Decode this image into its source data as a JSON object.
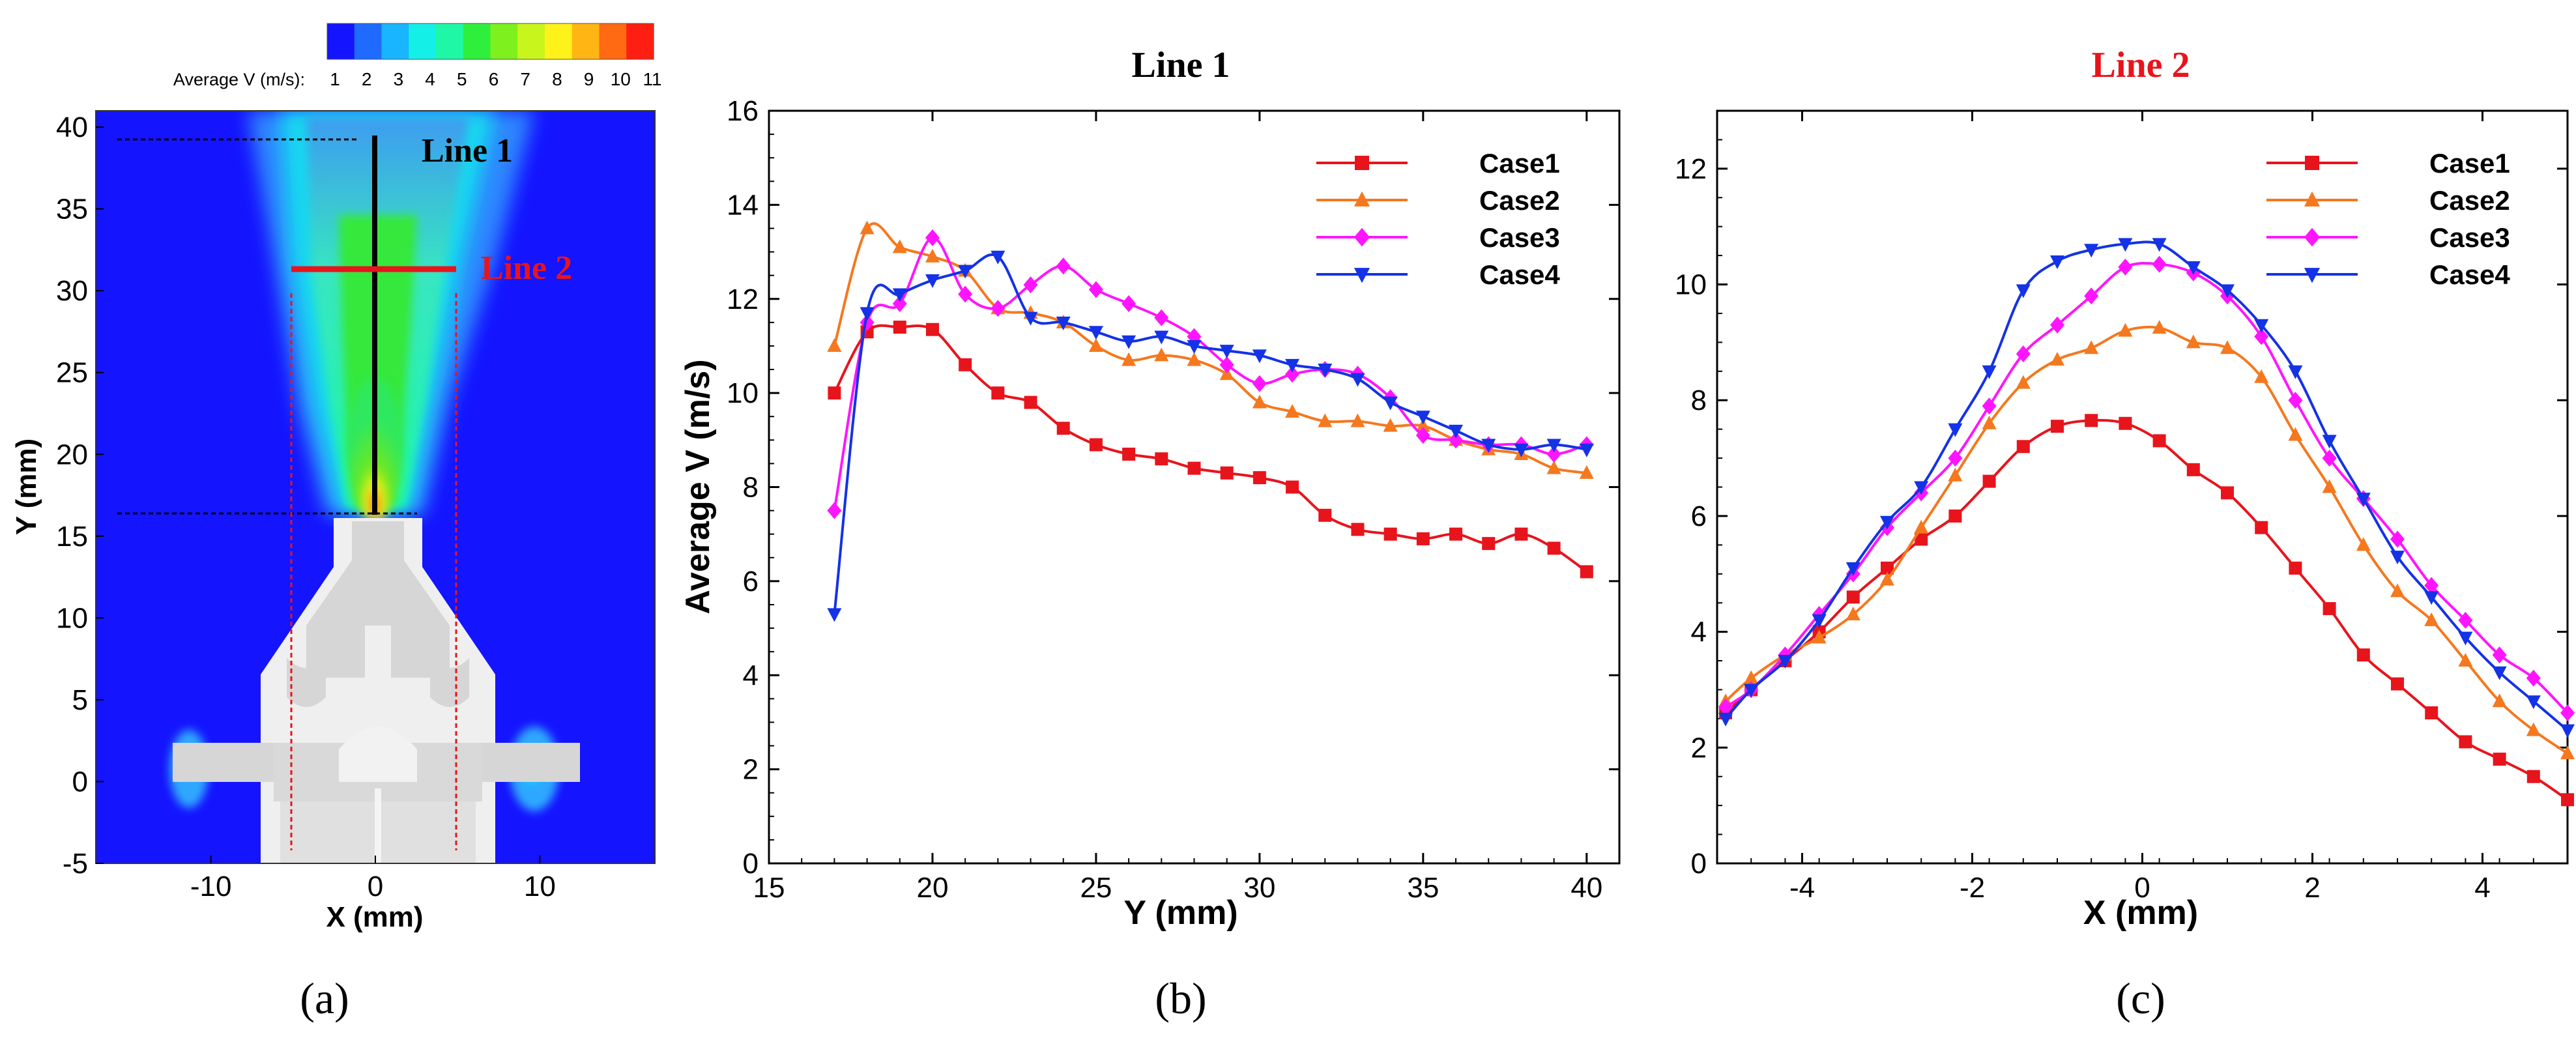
{
  "panel_a": {
    "colorbar": {
      "title": "Average V (m/s):",
      "ticks": [
        "1",
        "2",
        "3",
        "4",
        "5",
        "6",
        "7",
        "8",
        "9",
        "10",
        "11"
      ],
      "colors": [
        "#1414ff",
        "#1f6bff",
        "#19b5ff",
        "#14f0e8",
        "#1ef7a6",
        "#2ef03c",
        "#7ef01e",
        "#c8f51c",
        "#fff21a",
        "#ffb514",
        "#ff6a12",
        "#ff1e12"
      ]
    },
    "xlabel": "X (mm)",
    "ylabel": "Y (mm)",
    "xticks": [
      "-10",
      "0",
      "10"
    ],
    "yticks": [
      "-5",
      "0",
      "5",
      "10",
      "15",
      "20",
      "25",
      "30",
      "35",
      "40"
    ],
    "xlim": [
      -17,
      17
    ],
    "ylim": [
      -5,
      41
    ],
    "line1_label": "Line 1",
    "line2_label": "Line 2",
    "caption": "(a)"
  },
  "chart_data": [
    {
      "type": "line",
      "title": "Line 1",
      "title_color": "#000000",
      "xlabel": "Y (mm)",
      "ylabel": "Average V (m/s)",
      "xlim": [
        15,
        41
      ],
      "ylim": [
        0,
        16
      ],
      "xticks": [
        15,
        20,
        25,
        30,
        35,
        40
      ],
      "yticks": [
        0,
        2,
        4,
        6,
        8,
        10,
        12,
        14,
        16
      ],
      "legend": "top-right",
      "caption": "(b)",
      "series": [
        {
          "name": "Case1",
          "color": "#e8141c",
          "marker": "square",
          "x": [
            17,
            18,
            19,
            20,
            21,
            22,
            23,
            24,
            25,
            26,
            27,
            28,
            29,
            30,
            31,
            32,
            33,
            34,
            35,
            36,
            37,
            38,
            39,
            40
          ],
          "y": [
            10.0,
            11.3,
            11.4,
            11.35,
            10.6,
            10.0,
            9.8,
            9.25,
            8.9,
            8.7,
            8.6,
            8.4,
            8.3,
            8.2,
            8.0,
            7.4,
            7.1,
            7.0,
            6.9,
            7.0,
            6.8,
            7.0,
            6.7,
            6.2
          ]
        },
        {
          "name": "Case2",
          "color": "#f5781e",
          "marker": "triangle",
          "x": [
            17,
            18,
            19,
            20,
            21,
            22,
            23,
            24,
            25,
            26,
            27,
            28,
            29,
            30,
            31,
            32,
            33,
            34,
            35,
            36,
            37,
            38,
            39,
            40
          ],
          "y": [
            11.0,
            13.5,
            13.1,
            12.9,
            12.6,
            11.8,
            11.7,
            11.5,
            11.0,
            10.7,
            10.8,
            10.7,
            10.4,
            9.8,
            9.6,
            9.4,
            9.4,
            9.3,
            9.3,
            9.0,
            8.8,
            8.7,
            8.4,
            8.3
          ]
        },
        {
          "name": "Case3",
          "color": "#ff14ff",
          "marker": "diamond",
          "x": [
            17,
            18,
            19,
            20,
            21,
            22,
            23,
            24,
            25,
            26,
            27,
            28,
            29,
            30,
            31,
            32,
            33,
            34,
            35,
            36,
            37,
            38,
            39,
            40
          ],
          "y": [
            7.5,
            11.5,
            11.9,
            13.3,
            12.1,
            11.8,
            12.3,
            12.7,
            12.2,
            11.9,
            11.6,
            11.2,
            10.6,
            10.2,
            10.4,
            10.5,
            10.4,
            9.9,
            9.1,
            9.0,
            8.9,
            8.9,
            8.7,
            8.9
          ]
        },
        {
          "name": "Case4",
          "color": "#1432e6",
          "marker": "triangle-down",
          "x": [
            17,
            18,
            19,
            20,
            21,
            22,
            23,
            24,
            25,
            26,
            27,
            28,
            29,
            30,
            31,
            32,
            33,
            34,
            35,
            36,
            37,
            38,
            39,
            40
          ],
          "y": [
            5.3,
            11.7,
            12.1,
            12.4,
            12.6,
            12.9,
            11.6,
            11.5,
            11.3,
            11.1,
            11.2,
            11.0,
            10.9,
            10.8,
            10.6,
            10.5,
            10.3,
            9.8,
            9.5,
            9.2,
            8.9,
            8.8,
            8.9,
            8.8
          ]
        }
      ]
    },
    {
      "type": "line",
      "title": "Line 2",
      "title_color": "#e8141c",
      "xlabel": "X (mm)",
      "ylabel": "",
      "xlim": [
        -5,
        5
      ],
      "ylim": [
        0,
        13
      ],
      "xticks": [
        -4,
        -2,
        0,
        2,
        4
      ],
      "yticks": [
        0,
        2,
        4,
        6,
        8,
        10,
        12
      ],
      "legend": "top-right",
      "caption": "(c)",
      "series": [
        {
          "name": "Case1",
          "color": "#e8141c",
          "marker": "square",
          "x": [
            -4.9,
            -4.6,
            -4.2,
            -3.8,
            -3.4,
            -3.0,
            -2.6,
            -2.2,
            -1.8,
            -1.4,
            -1.0,
            -0.6,
            -0.2,
            0.2,
            0.6,
            1.0,
            1.4,
            1.8,
            2.2,
            2.6,
            3.0,
            3.4,
            3.8,
            4.2,
            4.6,
            5.0
          ],
          "y": [
            2.6,
            3.0,
            3.5,
            4.0,
            4.6,
            5.1,
            5.6,
            6.0,
            6.6,
            7.2,
            7.55,
            7.65,
            7.6,
            7.3,
            6.8,
            6.4,
            5.8,
            5.1,
            4.4,
            3.6,
            3.1,
            2.6,
            2.1,
            1.8,
            1.5,
            1.1
          ]
        },
        {
          "name": "Case2",
          "color": "#f5781e",
          "marker": "triangle",
          "x": [
            -4.9,
            -4.6,
            -4.2,
            -3.8,
            -3.4,
            -3.0,
            -2.6,
            -2.2,
            -1.8,
            -1.4,
            -1.0,
            -0.6,
            -0.2,
            0.2,
            0.6,
            1.0,
            1.4,
            1.8,
            2.2,
            2.6,
            3.0,
            3.4,
            3.8,
            4.2,
            4.6,
            5.0
          ],
          "y": [
            2.8,
            3.2,
            3.6,
            3.9,
            4.3,
            4.9,
            5.8,
            6.7,
            7.6,
            8.3,
            8.7,
            8.9,
            9.2,
            9.25,
            9.0,
            8.9,
            8.4,
            7.4,
            6.5,
            5.5,
            4.7,
            4.2,
            3.5,
            2.8,
            2.3,
            1.9
          ]
        },
        {
          "name": "Case3",
          "color": "#ff14ff",
          "marker": "diamond",
          "x": [
            -4.9,
            -4.6,
            -4.2,
            -3.8,
            -3.4,
            -3.0,
            -2.6,
            -2.2,
            -1.8,
            -1.4,
            -1.0,
            -0.6,
            -0.2,
            0.2,
            0.6,
            1.0,
            1.4,
            1.8,
            2.2,
            2.6,
            3.0,
            3.4,
            3.8,
            4.2,
            4.6,
            5.0
          ],
          "y": [
            2.7,
            3.0,
            3.6,
            4.3,
            5.0,
            5.8,
            6.4,
            7.0,
            7.9,
            8.8,
            9.3,
            9.8,
            10.3,
            10.35,
            10.2,
            9.8,
            9.1,
            8.0,
            7.0,
            6.3,
            5.6,
            4.8,
            4.2,
            3.6,
            3.2,
            2.6
          ]
        },
        {
          "name": "Case4",
          "color": "#1432e6",
          "marker": "triangle-down",
          "x": [
            -4.9,
            -4.6,
            -4.2,
            -3.8,
            -3.4,
            -3.0,
            -2.6,
            -2.2,
            -1.8,
            -1.4,
            -1.0,
            -0.6,
            -0.2,
            0.2,
            0.6,
            1.0,
            1.4,
            1.8,
            2.2,
            2.6,
            3.0,
            3.4,
            3.8,
            4.2,
            4.6,
            5.0
          ],
          "y": [
            2.5,
            3.0,
            3.5,
            4.2,
            5.1,
            5.9,
            6.5,
            7.5,
            8.5,
            9.9,
            10.4,
            10.6,
            10.7,
            10.7,
            10.3,
            9.9,
            9.3,
            8.5,
            7.3,
            6.3,
            5.3,
            4.6,
            3.9,
            3.3,
            2.8,
            2.3
          ]
        }
      ]
    }
  ]
}
